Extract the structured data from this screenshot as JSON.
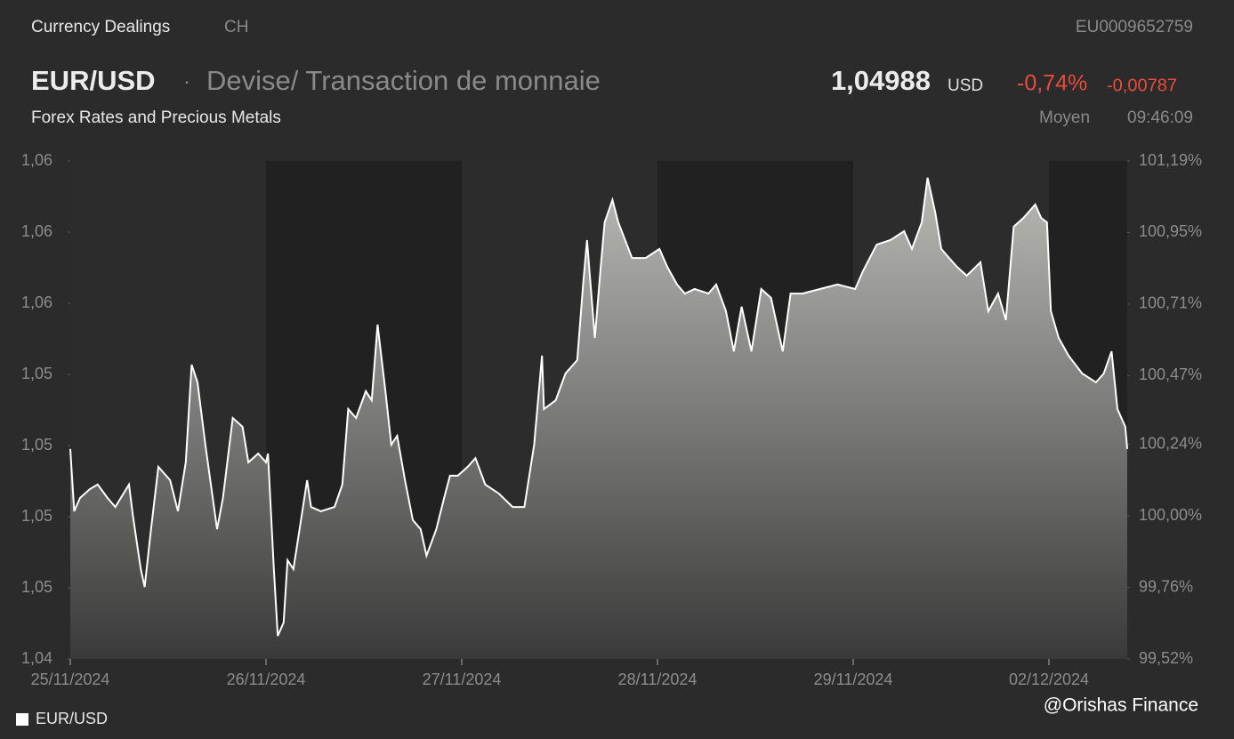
{
  "header": {
    "section": "Currency Dealings",
    "exchange": "CH",
    "isin": "EU0009652759",
    "symbol": "EUR/USD",
    "separator": "·",
    "description": "Devise/ Transaction de monnaie",
    "price": "1,04988",
    "currency": "USD",
    "change_pct": "-0,74%",
    "change_abs": "-0,00787",
    "subtitle": "Forex Rates and Precious Metals",
    "price_type": "Moyen",
    "time": "09:46:09"
  },
  "chart_data": {
    "type": "area",
    "x": [
      0,
      0.02,
      0.05,
      0.1,
      0.14,
      0.19,
      0.23,
      0.3,
      0.32,
      0.36,
      0.38,
      0.41,
      0.45,
      0.51,
      0.55,
      0.59,
      0.62,
      0.65,
      0.69,
      0.75,
      0.78,
      0.83,
      0.88,
      0.91,
      0.96,
      1.0,
      1.01,
      1.04,
      1.06,
      1.09,
      1.11,
      1.14,
      1.21,
      1.23,
      1.28,
      1.35,
      1.39,
      1.42,
      1.46,
      1.51,
      1.54,
      1.57,
      1.61,
      1.64,
      1.67,
      1.71,
      1.75,
      1.79,
      1.82,
      1.87,
      1.91,
      1.94,
      1.98,
      2.03,
      2.07,
      2.12,
      2.19,
      2.26,
      2.32,
      2.37,
      2.41,
      2.42,
      2.48,
      2.53,
      2.59,
      2.62,
      2.64,
      2.68,
      2.71,
      2.73,
      2.77,
      2.8,
      2.87,
      2.94,
      3.01,
      3.05,
      3.1,
      3.14,
      3.19,
      3.26,
      3.3,
      3.35,
      3.39,
      3.43,
      3.48,
      3.53,
      3.58,
      3.64,
      3.68,
      3.74,
      3.83,
      3.92,
      4.01,
      4.05,
      4.12,
      4.19,
      4.26,
      4.3,
      4.35,
      4.38,
      4.42,
      4.45,
      4.49,
      4.53,
      4.58,
      4.65,
      4.69,
      4.74,
      4.78,
      4.82,
      4.87,
      4.93,
      4.96,
      4.99,
      5.01,
      5.05,
      5.1,
      5.17,
      5.24,
      5.28,
      5.32,
      5.35,
      5.39,
      5.4
    ],
    "series": [
      {
        "name": "EUR/USD",
        "color": "#ffffff",
        "axis": "y",
        "values": [
          1.05038,
          1.04819,
          1.04866,
          1.04897,
          1.04913,
          1.04866,
          1.04834,
          1.04913,
          1.04803,
          1.04616,
          1.04553,
          1.04741,
          1.04975,
          1.04928,
          1.04819,
          1.04991,
          1.05334,
          1.05272,
          1.05053,
          1.04756,
          1.04866,
          1.05147,
          1.05116,
          1.04991,
          1.05022,
          1.04991,
          1.05022,
          1.04616,
          1.04381,
          1.04428,
          1.04647,
          1.04616,
          1.04928,
          1.04834,
          1.04819,
          1.04834,
          1.04913,
          1.05178,
          1.05147,
          1.05241,
          1.05209,
          1.05475,
          1.05241,
          1.05053,
          1.05084,
          1.04928,
          1.04788,
          1.04756,
          1.04663,
          1.04756,
          1.04866,
          1.04944,
          1.04944,
          1.04975,
          1.05006,
          1.04913,
          1.04881,
          1.04834,
          1.04834,
          1.05053,
          1.05366,
          1.05178,
          1.05209,
          1.05303,
          1.0535,
          1.05616,
          1.05772,
          1.05428,
          1.05678,
          1.05834,
          1.05913,
          1.05834,
          1.05709,
          1.05709,
          1.05741,
          1.05678,
          1.05616,
          1.05584,
          1.056,
          1.05584,
          1.05616,
          1.05522,
          1.05381,
          1.05538,
          1.05381,
          1.056,
          1.05569,
          1.05381,
          1.05584,
          1.05584,
          1.056,
          1.05616,
          1.056,
          1.05663,
          1.05756,
          1.05772,
          1.05803,
          1.05741,
          1.05834,
          1.05991,
          1.05866,
          1.05741,
          1.05709,
          1.05678,
          1.05647,
          1.05694,
          1.05522,
          1.05584,
          1.05491,
          1.05819,
          1.0585,
          1.05897,
          1.0585,
          1.05834,
          1.05522,
          1.05428,
          1.05366,
          1.05303,
          1.05272,
          1.05303,
          1.05381,
          1.05178,
          1.05116,
          1.05038
        ]
      }
    ],
    "xlim": [
      0,
      5.4
    ],
    "xticks": [
      {
        "value": 0,
        "label": "25/11/2024"
      },
      {
        "value": 1,
        "label": "26/11/2024"
      },
      {
        "value": 2,
        "label": "27/11/2024"
      },
      {
        "value": 3,
        "label": "28/11/2024"
      },
      {
        "value": 4,
        "label": "29/11/2024"
      },
      {
        "value": 5,
        "label": "02/12/2024"
      }
    ],
    "ylim": [
      1.043,
      1.0605
    ],
    "yticks": [
      {
        "value": 1.043,
        "label": "1,04"
      },
      {
        "value": 1.0455,
        "label": "1,05"
      },
      {
        "value": 1.048,
        "label": "1,05"
      },
      {
        "value": 1.0505,
        "label": "1,05"
      },
      {
        "value": 1.053,
        "label": "1,05"
      },
      {
        "value": 1.0555,
        "label": "1,06"
      },
      {
        "value": 1.058,
        "label": "1,06"
      },
      {
        "value": 1.0605,
        "label": "1,06"
      }
    ],
    "y2lim": [
      99.52,
      101.19
    ],
    "y2ticks": [
      {
        "value": 99.52,
        "label": "99,52%"
      },
      {
        "value": 99.76,
        "label": "99,76%"
      },
      {
        "value": 100,
        "label": "100,00%"
      },
      {
        "value": 100.24,
        "label": "100,24%"
      },
      {
        "value": 100.47,
        "label": "100,47%"
      },
      {
        "value": 100.71,
        "label": "100,71%"
      },
      {
        "value": 100.95,
        "label": "100,95%"
      },
      {
        "value": 101.19,
        "label": "101,19%"
      }
    ],
    "legend": "bottom-left"
  },
  "watermark": "@Orishas Finance"
}
